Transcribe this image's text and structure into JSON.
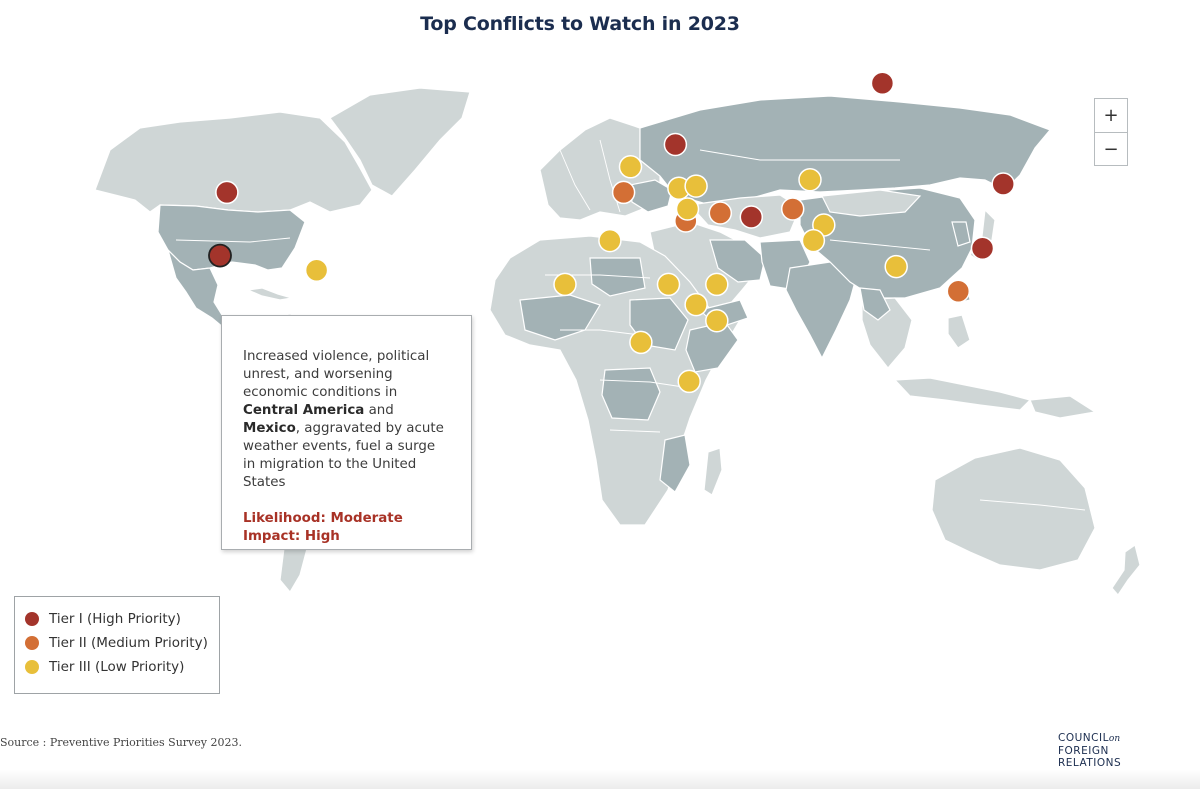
{
  "title": "Top Conflicts to Watch in 2023",
  "zoom": {
    "in_label": "+",
    "out_label": "−"
  },
  "tooltip": {
    "text_before_1": "Increased violence, political unrest, and worsening economic conditions in ",
    "bold_1": "Central America",
    "text_between": " and ",
    "bold_2": "Mexico",
    "text_after": ", aggravated by acute weather events, fuel a surge in migration to the United States",
    "likelihood": "Likelihood: Moderate",
    "impact": "Impact: High"
  },
  "legend": [
    {
      "label": "Tier I (High Priority)",
      "color": "#a3342b"
    },
    {
      "label": "Tier II (Medium Priority)",
      "color": "#d36f35"
    },
    {
      "label": "Tier III (Low Priority)",
      "color": "#e8bf3a"
    }
  ],
  "source": "Source : Preventive Priorities Survey 2023.",
  "logo": {
    "line1": "COUNCIL",
    "on": "on",
    "line2": "FOREIGN",
    "line3": "RELATIONS"
  },
  "colors": {
    "tier1": "#a3342b",
    "tier2": "#d36f35",
    "tier3": "#e8bf3a",
    "land": "#cfd6d6",
    "land_highlight": "#a3b2b5"
  },
  "markers": [
    {
      "name": "russia",
      "tier": 1,
      "lon": 92,
      "lat": 62
    },
    {
      "name": "ukraine",
      "tier": 1,
      "lon": 32,
      "lat": 49
    },
    {
      "name": "united-states",
      "tier": 1,
      "lon": -98,
      "lat": 38
    },
    {
      "name": "mexico-central-america",
      "tier": 1,
      "lon": -100,
      "lat": 22,
      "selected": true
    },
    {
      "name": "iran",
      "tier": 1,
      "lon": 54,
      "lat": 32
    },
    {
      "name": "north-korea",
      "tier": 1,
      "lon": 127,
      "lat": 40
    },
    {
      "name": "taiwan",
      "tier": 1,
      "lon": 121,
      "lat": 24
    },
    {
      "name": "libya",
      "tier": 2,
      "lon": 17,
      "lat": 38
    },
    {
      "name": "israel-palestine",
      "tier": 2,
      "lon": 35,
      "lat": 31
    },
    {
      "name": "iraq",
      "tier": 2,
      "lon": 45,
      "lat": 33
    },
    {
      "name": "afghanistan",
      "tier": 2,
      "lon": 66,
      "lat": 34
    },
    {
      "name": "south-china-sea",
      "tier": 2,
      "lon": 114,
      "lat": 12
    },
    {
      "name": "balkans",
      "tier": 3,
      "lon": 19,
      "lat": 44
    },
    {
      "name": "turkey",
      "tier": 3,
      "lon": 33,
      "lat": 39
    },
    {
      "name": "syria",
      "tier": 3,
      "lon": 38,
      "lat": 39.5
    },
    {
      "name": "lebanon",
      "tier": 3,
      "lon": 35.5,
      "lat": 34
    },
    {
      "name": "central-asia",
      "tier": 3,
      "lon": 71,
      "lat": 41
    },
    {
      "name": "pakistan",
      "tier": 3,
      "lon": 75,
      "lat": 30
    },
    {
      "name": "india",
      "tier": 3,
      "lon": 72,
      "lat": 26
    },
    {
      "name": "myanmar",
      "tier": 3,
      "lon": 96,
      "lat": 19
    },
    {
      "name": "libya-south",
      "tier": 3,
      "lon": 13,
      "lat": 26
    },
    {
      "name": "sahel",
      "tier": 3,
      "lon": 0,
      "lat": 14
    },
    {
      "name": "sudan",
      "tier": 3,
      "lon": 30,
      "lat": 14
    },
    {
      "name": "yemen",
      "tier": 3,
      "lon": 44,
      "lat": 14
    },
    {
      "name": "ethiopia",
      "tier": 3,
      "lon": 38,
      "lat": 8
    },
    {
      "name": "somalia",
      "tier": 3,
      "lon": 44,
      "lat": 3
    },
    {
      "name": "drc",
      "tier": 3,
      "lon": 22,
      "lat": -4
    },
    {
      "name": "mozambique",
      "tier": 3,
      "lon": 36,
      "lat": -16
    },
    {
      "name": "haiti",
      "tier": 3,
      "lon": -72,
      "lat": 18
    }
  ]
}
